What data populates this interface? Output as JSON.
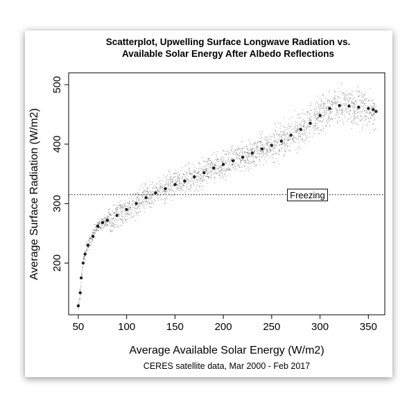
{
  "chart_data": {
    "type": "scatter",
    "title": "Scatterplot, Upwelling Surface Longwave Radiation vs.",
    "subtitle": "Available Solar Energy After Albedo Reflections",
    "xlabel": "Average Available Solar Energy (W/m2)",
    "ylabel": "Average Surface Radiation (W/m2)",
    "caption": "CERES satellite data, Mar 2000 - Feb 2017",
    "xlim": [
      40,
      367
    ],
    "ylim": [
      113,
      520
    ],
    "x_ticks": [
      50,
      100,
      150,
      200,
      250,
      300,
      350
    ],
    "y_ticks": [
      200,
      300,
      400,
      500
    ],
    "x_tick_labels": [
      "50",
      "100",
      "150",
      "200",
      "250",
      "300",
      "350"
    ],
    "y_tick_labels": [
      "200",
      "300",
      "400",
      "500"
    ],
    "grid": false,
    "reference_line": {
      "label": "Freezing",
      "y": 315,
      "style": "dotted"
    },
    "annotation": {
      "text": "Freezing",
      "x": 287,
      "y": 315
    },
    "point_color": "#000000",
    "series": [
      {
        "values": [
          [
            50,
            128
          ],
          [
            52,
            150
          ],
          [
            53,
            175
          ],
          [
            55,
            200
          ],
          [
            57,
            215
          ],
          [
            60,
            230
          ],
          [
            65,
            245
          ],
          [
            70,
            262
          ],
          [
            75,
            268
          ],
          [
            80,
            272
          ],
          [
            90,
            280
          ],
          [
            100,
            290
          ],
          [
            110,
            300
          ],
          [
            120,
            310
          ],
          [
            130,
            318
          ],
          [
            140,
            325
          ],
          [
            150,
            332
          ],
          [
            160,
            338
          ],
          [
            170,
            345
          ],
          [
            180,
            352
          ],
          [
            190,
            360
          ],
          [
            200,
            366
          ],
          [
            210,
            372
          ],
          [
            220,
            378
          ],
          [
            230,
            385
          ],
          [
            240,
            392
          ],
          [
            250,
            398
          ],
          [
            260,
            405
          ],
          [
            270,
            415
          ],
          [
            280,
            425
          ],
          [
            290,
            435
          ],
          [
            300,
            448
          ],
          [
            310,
            460
          ],
          [
            320,
            465
          ],
          [
            330,
            464
          ],
          [
            340,
            462
          ],
          [
            350,
            460
          ],
          [
            355,
            458
          ],
          [
            358,
            455
          ]
        ]
      }
    ]
  }
}
